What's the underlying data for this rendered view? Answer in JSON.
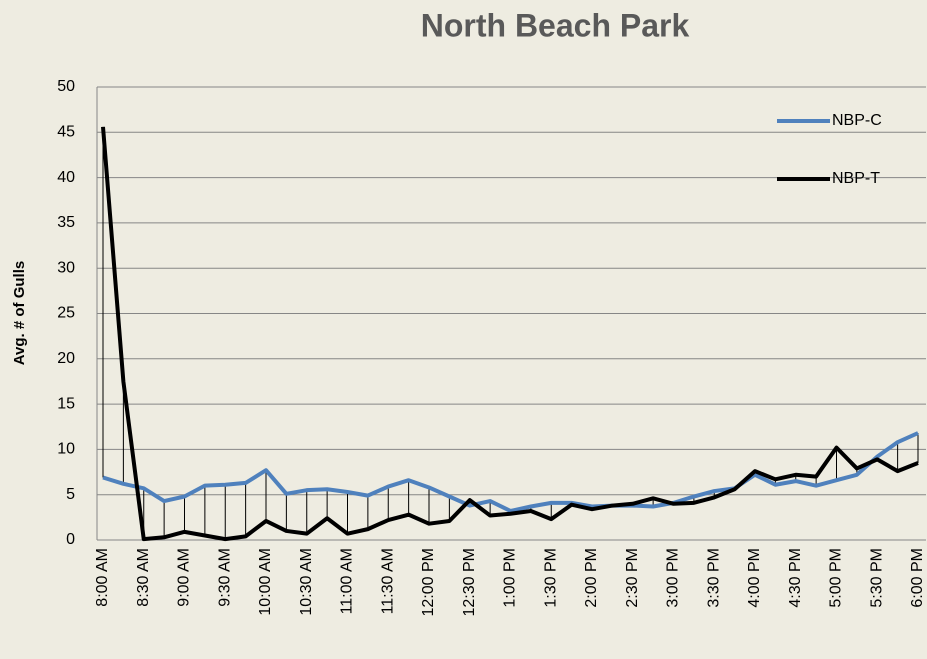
{
  "chart_data": {
    "type": "line",
    "title": "North Beach Park",
    "y_label": "Avg. # of Gulls",
    "categories": [
      "8:00 AM",
      null,
      "8:30 AM",
      null,
      "9:00 AM",
      null,
      "9:30 AM",
      null,
      "10:00 AM",
      null,
      "10:30 AM",
      null,
      "11:00 AM",
      null,
      "11:30 AM",
      null,
      "12:00 PM",
      null,
      "12:30 PM",
      null,
      "1:00 PM",
      null,
      "1:30 PM",
      null,
      "2:00 PM",
      null,
      "2:30 PM",
      null,
      "3:00 PM",
      null,
      "3:30 PM",
      null,
      "4:00 PM",
      null,
      "4:30 PM",
      null,
      "5:00 PM",
      null,
      "5:30 PM",
      null,
      "6:00 PM"
    ],
    "series": [
      {
        "name": "NBP-C",
        "color": "#4f81bd",
        "values": [
          6.9,
          6.2,
          5.7,
          4.3,
          4.8,
          6.0,
          6.1,
          6.3,
          7.7,
          5.1,
          5.5,
          5.6,
          5.3,
          4.9,
          5.9,
          6.6,
          5.8,
          4.8,
          3.8,
          4.3,
          3.2,
          3.7,
          4.1,
          4.1,
          3.7,
          3.8,
          3.8,
          3.7,
          4.1,
          4.8,
          5.4,
          5.7,
          7.2,
          6.1,
          6.5,
          6.0,
          6.6,
          7.2,
          9.2,
          10.8,
          11.8
        ]
      },
      {
        "name": "NBP-T",
        "color": "#000000",
        "values": [
          45.6,
          17.5,
          0.1,
          0.3,
          0.9,
          0.5,
          0.1,
          0.4,
          2.1,
          1.0,
          0.7,
          2.4,
          0.7,
          1.2,
          2.2,
          2.8,
          1.8,
          2.1,
          4.4,
          2.7,
          2.9,
          3.2,
          2.3,
          3.9,
          3.4,
          3.8,
          4.0,
          4.6,
          4.0,
          4.1,
          4.7,
          5.6,
          7.6,
          6.7,
          7.2,
          7.0,
          10.2,
          7.9,
          8.9,
          7.6,
          8.5
        ]
      }
    ],
    "ylim": [
      0,
      50
    ],
    "yticks": [
      0,
      5,
      10,
      15,
      20,
      25,
      30,
      35,
      40,
      45,
      50
    ],
    "grid": true,
    "legend": "right",
    "drop_lines": true
  }
}
